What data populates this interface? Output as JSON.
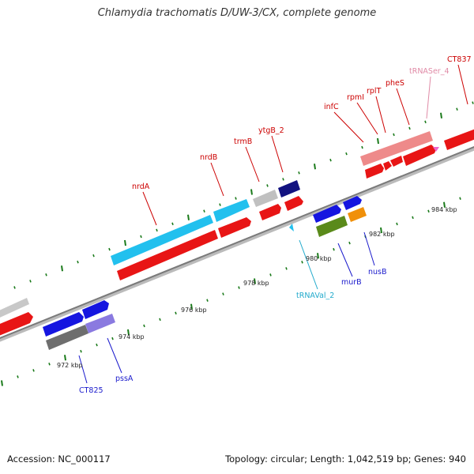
{
  "title": "Chlamydia trachomatis D/UW-3/CX, complete genome",
  "footer": {
    "accession": "Accession: NC_000117",
    "summary": "Topology: circular; Length: 1,042,519 bp; Genes: 940"
  },
  "colors": {
    "backbone": "#8c8c8c",
    "tick": "#1a7a1a",
    "forward_label": "#cc0000",
    "reverse_label": "#1a1acc",
    "trna_label": "#22aacc",
    "trna_ser_label": "#e08aa6"
  },
  "kbp_labels": [
    "972 kbp",
    "974 kbp",
    "976 kbp",
    "978 kbp",
    "980 kbp",
    "982 kbp",
    "984 kbp"
  ],
  "forward_genes": [
    {
      "label": "nrdA",
      "color": "#cc0000"
    },
    {
      "label": "nrdB",
      "color": "#cc0000"
    },
    {
      "label": "trmB",
      "color": "#cc0000"
    },
    {
      "label": "ytgB_2",
      "color": "#cc0000"
    },
    {
      "label": "infC",
      "color": "#cc0000"
    },
    {
      "label": "rpmI",
      "color": "#cc0000"
    },
    {
      "label": "rplT",
      "color": "#cc0000"
    },
    {
      "label": "pheS",
      "color": "#cc0000"
    },
    {
      "label": "tRNASer_4",
      "color": "#e08aa6"
    },
    {
      "label": "CT837",
      "color": "#cc0000"
    }
  ],
  "reverse_genes": [
    {
      "label": "CT825",
      "color": "#1a1acc"
    },
    {
      "label": "pssA",
      "color": "#1a1acc"
    },
    {
      "label": "tRNAVal_2",
      "color": "#22aacc"
    },
    {
      "label": "murB",
      "color": "#1a1acc"
    },
    {
      "label": "nusB",
      "color": "#1a1acc"
    }
  ]
}
